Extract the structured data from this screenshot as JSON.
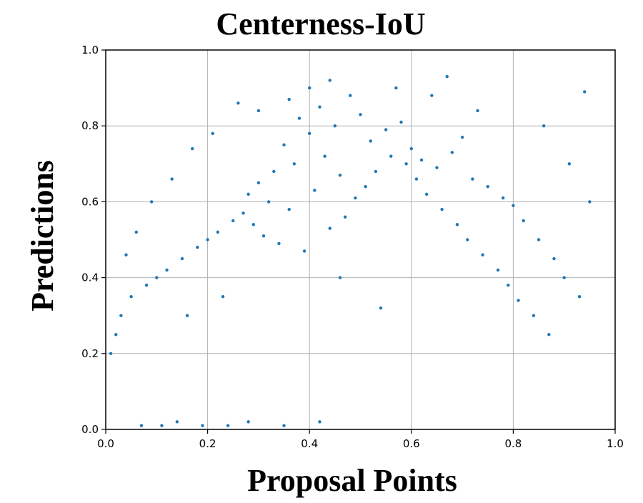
{
  "chart_data": {
    "type": "scatter",
    "title": "Centerness-IoU",
    "xlabel": "Proposal Points",
    "ylabel": "Predictions",
    "xlim": [
      0.0,
      1.0
    ],
    "ylim": [
      0.0,
      1.0
    ],
    "x_ticks": [
      "0.0",
      "0.2",
      "0.4",
      "0.6",
      "0.8",
      "1.0"
    ],
    "y_ticks": [
      "0.0",
      "0.2",
      "0.4",
      "0.6",
      "0.8",
      "1.0"
    ],
    "grid": true,
    "legend": "none",
    "marker_color": "#1f77b4",
    "series": [
      {
        "x": [
          0.38,
          0.42,
          0.45,
          0.4,
          0.35,
          0.5,
          0.48,
          0.43,
          0.37,
          0.33,
          0.3,
          0.28,
          0.32,
          0.36,
          0.41,
          0.46,
          0.52,
          0.55,
          0.58,
          0.6,
          0.62,
          0.65,
          0.68,
          0.7,
          0.72,
          0.75,
          0.78,
          0.8,
          0.82,
          0.85,
          0.88,
          0.9,
          0.93,
          0.95,
          0.25,
          0.22,
          0.2,
          0.18,
          0.15,
          0.12,
          0.1,
          0.08,
          0.05,
          0.03,
          0.02,
          0.01,
          0.27,
          0.29,
          0.31,
          0.34,
          0.39,
          0.44,
          0.47,
          0.49,
          0.51,
          0.53,
          0.56,
          0.59,
          0.61,
          0.63,
          0.66,
          0.69,
          0.71,
          0.74,
          0.77,
          0.79,
          0.81,
          0.84,
          0.87,
          0.44,
          0.4,
          0.36,
          0.3,
          0.26,
          0.21,
          0.17,
          0.13,
          0.09,
          0.06,
          0.04,
          0.57,
          0.64,
          0.67,
          0.73,
          0.86,
          0.91,
          0.94,
          0.42,
          0.35,
          0.28,
          0.24,
          0.19,
          0.14,
          0.11,
          0.07,
          0.16,
          0.23,
          0.46,
          0.54
        ],
        "y": [
          0.82,
          0.85,
          0.8,
          0.78,
          0.75,
          0.83,
          0.88,
          0.72,
          0.7,
          0.68,
          0.65,
          0.62,
          0.6,
          0.58,
          0.63,
          0.67,
          0.76,
          0.79,
          0.81,
          0.74,
          0.71,
          0.69,
          0.73,
          0.77,
          0.66,
          0.64,
          0.61,
          0.59,
          0.55,
          0.5,
          0.45,
          0.4,
          0.35,
          0.6,
          0.55,
          0.52,
          0.5,
          0.48,
          0.45,
          0.42,
          0.4,
          0.38,
          0.35,
          0.3,
          0.25,
          0.2,
          0.57,
          0.54,
          0.51,
          0.49,
          0.47,
          0.53,
          0.56,
          0.61,
          0.64,
          0.68,
          0.72,
          0.7,
          0.66,
          0.62,
          0.58,
          0.54,
          0.5,
          0.46,
          0.42,
          0.38,
          0.34,
          0.3,
          0.25,
          0.92,
          0.9,
          0.87,
          0.84,
          0.86,
          0.78,
          0.74,
          0.66,
          0.6,
          0.52,
          0.46,
          0.9,
          0.88,
          0.93,
          0.84,
          0.8,
          0.7,
          0.89,
          0.02,
          0.01,
          0.02,
          0.01,
          0.01,
          0.02,
          0.01,
          0.01,
          0.3,
          0.35,
          0.4,
          0.32
        ]
      }
    ]
  }
}
